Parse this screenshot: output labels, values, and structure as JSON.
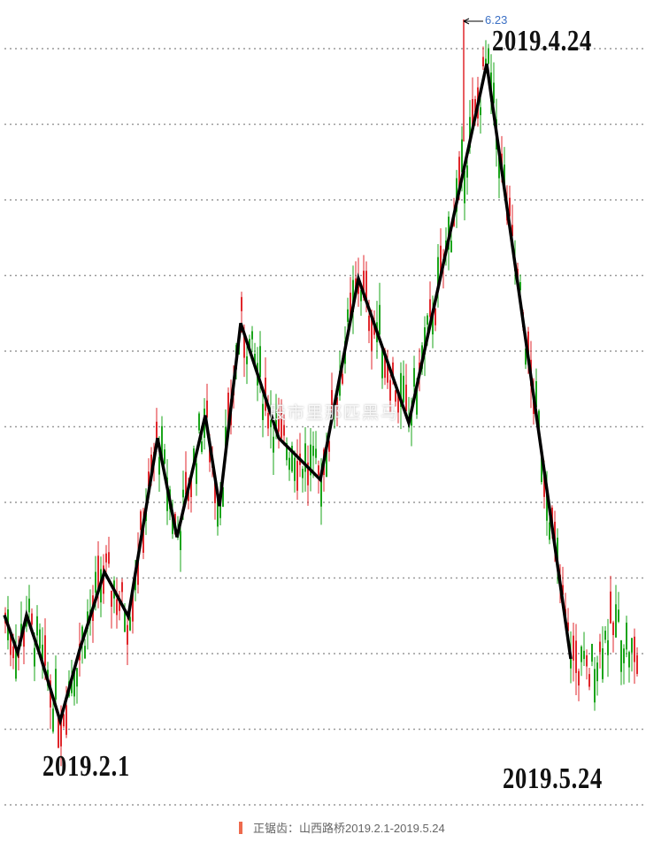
{
  "chart_data": {
    "type": "candlestick-with-zigzag",
    "title": "",
    "xlabel": "",
    "ylabel": "",
    "grid": {
      "horizontal": true,
      "style": "dotted",
      "lines": 11
    },
    "peak_value_label": "6.23",
    "date_labels": {
      "start": "2019.2.1",
      "peak": "2019.4.24",
      "end": "2019.5.24"
    },
    "zigzag_levels_in_grid_units": [
      2.51,
      2.01,
      2.51,
      1.99,
      1.11,
      2.05,
      3.08,
      2.49,
      4.85,
      3.54,
      5.15,
      3.95,
      6.37,
      4.85,
      4.3,
      6.96,
      5.05,
      9.8,
      1.93
    ],
    "colors": {
      "up": "#e0262b",
      "down": "#1aa41a",
      "zigzag": "#000000",
      "grid": "#999999",
      "peak_label": "#3a6fc4"
    }
  },
  "watermark": "股市里那匹黑马",
  "caption": "正锯齿：山西路桥2019.2.1-2019.5.24"
}
